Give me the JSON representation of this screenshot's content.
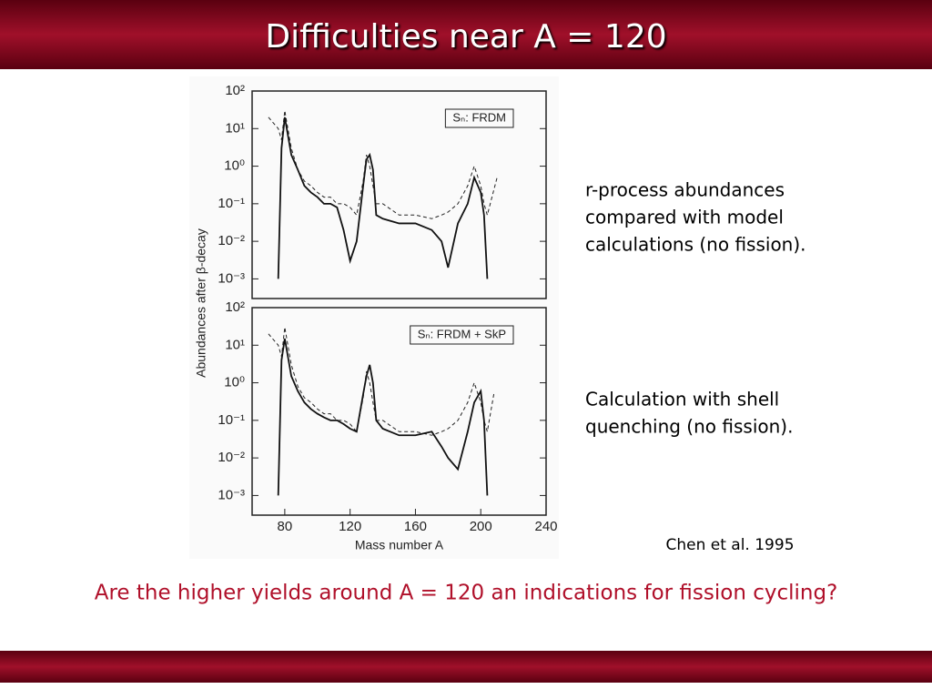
{
  "header": {
    "title": "Difficulties near A = 120"
  },
  "chart_data": [
    {
      "type": "line",
      "ylog": true,
      "ylabel": "Abundances after β-decay",
      "annotation": "Sₙ: FRDM",
      "xlim": [
        60,
        240
      ],
      "ylim": [
        0.0003,
        100
      ],
      "yticks": [
        {
          "value": 100,
          "label": "10²"
        },
        {
          "value": 10,
          "label": "10¹"
        },
        {
          "value": 1,
          "label": "10⁰"
        },
        {
          "value": 0.1,
          "label": "10⁻¹"
        },
        {
          "value": 0.01,
          "label": "10⁻²"
        },
        {
          "value": 0.001,
          "label": "10⁻³"
        }
      ],
      "x": [
        70,
        76,
        78,
        80,
        84,
        88,
        92,
        96,
        100,
        104,
        108,
        112,
        116,
        120,
        124,
        128,
        130,
        132,
        134,
        136,
        140,
        150,
        160,
        170,
        176,
        180,
        186,
        192,
        196,
        200,
        202,
        204,
        210
      ],
      "series": [
        {
          "color": "#222222",
          "dashed": true,
          "values": [
            20,
            10,
            5,
            30,
            3,
            0.8,
            0.4,
            0.3,
            0.2,
            0.15,
            0.15,
            0.1,
            0.1,
            0.08,
            0.05,
            0.4,
            2,
            1,
            0.3,
            0.1,
            0.1,
            0.05,
            0.05,
            0.04,
            0.05,
            0.06,
            0.1,
            0.3,
            1,
            0.3,
            0.1,
            0.05,
            0.5
          ]
        },
        {
          "color": "#111111",
          "dashed": false,
          "values": [
            null,
            0.001,
            3,
            20,
            2,
            0.8,
            0.3,
            0.2,
            0.15,
            0.1,
            0.1,
            0.08,
            0.02,
            0.003,
            0.01,
            0.3,
            1.5,
            2,
            0.8,
            0.05,
            0.04,
            0.03,
            0.03,
            0.02,
            0.01,
            0.002,
            0.03,
            0.1,
            0.5,
            0.2,
            0.05,
            0.001,
            null
          ]
        }
      ]
    },
    {
      "type": "line",
      "ylog": true,
      "xlabel": "Mass number  A",
      "annotation": "Sₙ: FRDM + SkP",
      "xlim": [
        60,
        240
      ],
      "ylim": [
        0.0003,
        100
      ],
      "xticks": [
        80,
        120,
        160,
        200,
        240
      ],
      "yticks": [
        {
          "value": 100,
          "label": "10²"
        },
        {
          "value": 10,
          "label": "10¹"
        },
        {
          "value": 1,
          "label": "10⁰"
        },
        {
          "value": 0.1,
          "label": "10⁻¹"
        },
        {
          "value": 0.01,
          "label": "10⁻²"
        },
        {
          "value": 0.001,
          "label": "10⁻³"
        }
      ],
      "x": [
        70,
        76,
        78,
        80,
        84,
        88,
        92,
        96,
        100,
        104,
        108,
        112,
        116,
        120,
        124,
        128,
        130,
        132,
        134,
        136,
        140,
        150,
        160,
        170,
        176,
        180,
        186,
        192,
        196,
        200,
        202,
        204,
        208
      ],
      "series": [
        {
          "color": "#222222",
          "dashed": true,
          "values": [
            20,
            10,
            5,
            30,
            3,
            0.8,
            0.4,
            0.3,
            0.2,
            0.15,
            0.15,
            0.1,
            0.1,
            0.08,
            0.05,
            0.4,
            2,
            1,
            0.3,
            0.1,
            0.1,
            0.05,
            0.05,
            0.04,
            0.05,
            0.06,
            0.1,
            0.3,
            1,
            0.3,
            0.1,
            0.05,
            0.5
          ]
        },
        {
          "color": "#111111",
          "dashed": false,
          "values": [
            null,
            0.001,
            4,
            15,
            1.5,
            0.6,
            0.3,
            0.2,
            0.15,
            0.12,
            0.1,
            0.1,
            0.08,
            0.06,
            0.05,
            0.5,
            1.5,
            3,
            1,
            0.1,
            0.06,
            0.04,
            0.04,
            0.05,
            0.02,
            0.01,
            0.005,
            0.05,
            0.3,
            0.6,
            0.1,
            0.001,
            null
          ]
        }
      ]
    }
  ],
  "notes": [
    {
      "lines": [
        "r-process abundances",
        "compared with model",
        "calculations (no fission)."
      ]
    },
    {
      "lines": [
        "Calculation with shell",
        "quenching (no fission)."
      ]
    }
  ],
  "citation": "Chen et al. 1995",
  "question": "Are the higher yields around A = 120 an indications for fission cycling?"
}
